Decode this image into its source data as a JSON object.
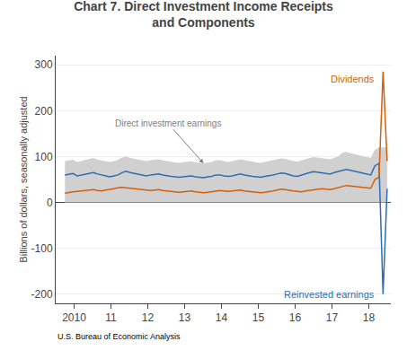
{
  "chart_data": {
    "type": "line",
    "title": "Chart 7. Direct Investment Income Receipts",
    "subtitle": "and Components",
    "ylabel": "Billions of dollars, seasonally adjusted",
    "annotations": [
      "U.S. Bureau of Economic Analysis"
    ],
    "grid": true,
    "ylim": [
      -220,
      320
    ],
    "yticks": [
      -200,
      -100,
      0,
      100,
      200,
      300
    ],
    "xlim": [
      2009.5,
      2018.6
    ],
    "xticks": [
      2010,
      {
        "value": 2011,
        "label": "11"
      },
      {
        "value": 2012,
        "label": "12"
      },
      {
        "value": 2013,
        "label": "13"
      },
      {
        "value": 2014,
        "label": "14"
      },
      {
        "value": 2015,
        "label": "15"
      },
      {
        "value": 2016,
        "label": "16"
      },
      {
        "value": 2017,
        "label": "17"
      },
      {
        "value": 2018,
        "label": "18"
      }
    ],
    "x": [
      2009.75,
      2009.860759,
      2009.971519,
      2010.082278,
      2010.193038,
      2010.303797,
      2010.414557,
      2010.525316,
      2010.636076,
      2010.746835,
      2010.857595,
      2010.968354,
      2011.079114,
      2011.189873,
      2011.300633,
      2011.411392,
      2011.522152,
      2011.632911,
      2011.743671,
      2011.85443,
      2011.96519,
      2012.075949,
      2012.186709,
      2012.297468,
      2012.408228,
      2012.518987,
      2012.629747,
      2012.740506,
      2012.851266,
      2012.962025,
      2013.072785,
      2013.183544,
      2013.294304,
      2013.405063,
      2013.515823,
      2013.626582,
      2013.737342,
      2013.848101,
      2013.958861,
      2014.06962,
      2014.18038,
      2014.291139,
      2014.401899,
      2014.512658,
      2014.623418,
      2014.734177,
      2014.844937,
      2014.955696,
      2015.066456,
      2015.177215,
      2015.287975,
      2015.398734,
      2015.509494,
      2015.620253,
      2015.731013,
      2015.841772,
      2015.952532,
      2016.063291,
      2016.174051,
      2016.28481,
      2016.39557,
      2016.506329,
      2016.617089,
      2016.727848,
      2016.838608,
      2016.949367,
      2017.060127,
      2017.170886,
      2017.281646,
      2017.392405,
      2017.503165,
      2017.613924,
      2017.724684,
      2017.835443,
      2017.946203,
      2018.056962,
      2018.167722,
      2018.278481,
      2018.389241,
      2018.5
    ],
    "series": [
      {
        "name": "Direct investment earnings",
        "type": "area",
        "color": "#d0d0d0",
        "upper": [
          90,
          92,
          93,
          88,
          90,
          92,
          95,
          97,
          93,
          91,
          90,
          88,
          90,
          93,
          98,
          100,
          97,
          95,
          93,
          91,
          90,
          92,
          93,
          94,
          92,
          90,
          88,
          87,
          86,
          87,
          88,
          90,
          87,
          86,
          85,
          87,
          88,
          92,
          92,
          90,
          88,
          90,
          92,
          94,
          92,
          90,
          88,
          87,
          86,
          88,
          90,
          92,
          94,
          96,
          95,
          92,
          90,
          89,
          92,
          94,
          97,
          99,
          98,
          96,
          95,
          94,
          97,
          100,
          108,
          110,
          107,
          105,
          103,
          101,
          99,
          97,
          115,
          120,
          120,
          120
        ],
        "lower": [
          0,
          0,
          0,
          0,
          0,
          0,
          0,
          0,
          0,
          0,
          0,
          0,
          0,
          0,
          0,
          0,
          0,
          0,
          0,
          0,
          0,
          0,
          0,
          0,
          0,
          0,
          0,
          0,
          0,
          0,
          0,
          0,
          0,
          0,
          0,
          0,
          0,
          0,
          0,
          0,
          0,
          0,
          0,
          0,
          0,
          0,
          0,
          0,
          0,
          0,
          0,
          0,
          0,
          0,
          0,
          0,
          0,
          0,
          0,
          0,
          0,
          0,
          0,
          0,
          0,
          0,
          0,
          0,
          0,
          0,
          0,
          0,
          0,
          0,
          0,
          0,
          0,
          0,
          0,
          0
        ]
      },
      {
        "name": "Reinvested earnings",
        "type": "line",
        "color": "#2e6db4",
        "values": [
          60,
          62,
          63,
          58,
          60,
          62,
          64,
          65,
          62,
          60,
          58,
          56,
          58,
          60,
          65,
          68,
          65,
          63,
          62,
          60,
          58,
          60,
          61,
          62,
          60,
          58,
          57,
          56,
          55,
          56,
          57,
          58,
          56,
          55,
          54,
          56,
          57,
          60,
          60,
          58,
          57,
          58,
          60,
          62,
          60,
          58,
          57,
          56,
          55,
          57,
          58,
          60,
          62,
          64,
          63,
          60,
          58,
          57,
          60,
          62,
          65,
          67,
          66,
          64,
          63,
          62,
          65,
          67,
          70,
          72,
          70,
          68,
          67,
          65,
          62,
          60,
          80,
          85,
          -200,
          30
        ]
      },
      {
        "name": "Dividends",
        "type": "line",
        "color": "#d4600a",
        "values": [
          20,
          22,
          23,
          24,
          25,
          26,
          27,
          28,
          26,
          25,
          27,
          28,
          30,
          32,
          33,
          32,
          31,
          30,
          29,
          28,
          27,
          26,
          27,
          28,
          26,
          25,
          24,
          23,
          22,
          23,
          24,
          25,
          23,
          22,
          21,
          22,
          23,
          25,
          26,
          25,
          24,
          25,
          26,
          27,
          25,
          24,
          23,
          22,
          21,
          22,
          23,
          25,
          27,
          29,
          28,
          26,
          25,
          24,
          23,
          25,
          26,
          28,
          29,
          30,
          29,
          28,
          30,
          32,
          35,
          37,
          36,
          35,
          34,
          33,
          32,
          31,
          50,
          55,
          285,
          90
        ]
      }
    ]
  }
}
